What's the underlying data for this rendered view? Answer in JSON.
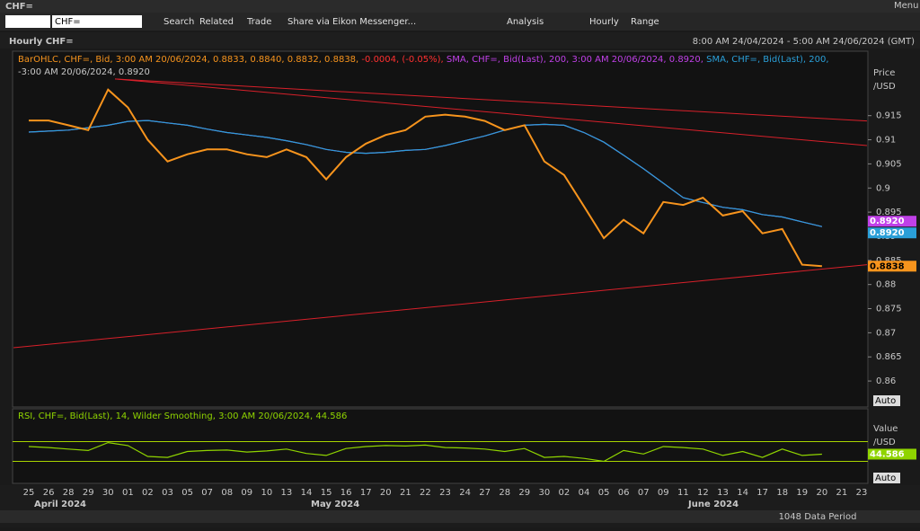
{
  "window": {
    "title": "CHF=",
    "search_box": "CHF=",
    "toolbar": [
      "Search",
      "Related",
      "Trade",
      "Share via Eikon Messenger...",
      "Analysis",
      "Hourly",
      "Range"
    ],
    "menu": "Menu",
    "chart_title": "Hourly CHF=",
    "period": "8:00 AM 24/04/2024 - 5:00 AM 24/06/2024 (GMT)",
    "price_axis_label": [
      "Price",
      "/USD"
    ],
    "value_axis_label": [
      "Value",
      "/USD"
    ],
    "auto": "Auto",
    "months": [
      "April 2024",
      "May 2024",
      "June 2024"
    ],
    "data_period": "1048 Data Period"
  },
  "chart_data": [
    {
      "type": "line",
      "legend_text": [
        {
          "text": "BarOHLC, CHF=, Bid, 3:00 AM 20/06/2024, 0.8833, 0.8840, 0.8832, 0.8838,",
          "color": "#f7941d"
        },
        {
          "text": " -0.0004, (-0.05%),",
          "color": "#ff3030"
        },
        {
          "text": " SMA, CHF=, Bid(Last),  200,  3:00 AM 20/06/2024, 0.8920,",
          "color": "#c040e8"
        },
        {
          "text": " SMA, CHF=, Bid(Last),  200,",
          "color": "#2a9fd8"
        },
        {
          "text": "-3:00 AM 20/06/2024, 0.8920",
          "color": "#2a9fd8"
        }
      ],
      "categories": [
        "25",
        "26",
        "28",
        "29",
        "30",
        "01",
        "02",
        "03",
        "05",
        "07",
        "08",
        "09",
        "10",
        "13",
        "14",
        "15",
        "16",
        "17",
        "20",
        "21",
        "22",
        "23",
        "24",
        "27",
        "28",
        "29",
        "30",
        "02",
        "04",
        "05",
        "06",
        "07",
        "09",
        "11",
        "12",
        "13",
        "14",
        "17",
        "18",
        "19",
        "20",
        "21",
        "23"
      ],
      "series": [
        {
          "name": "SMA, CHF=, Bid(Last), 200",
          "color": "#c040e8",
          "last_value": 0.892,
          "last_label": "0.8920",
          "values": [
            0.9116,
            0.9118,
            0.912,
            0.9125,
            0.913,
            0.9138,
            0.914,
            0.9135,
            0.913,
            0.9122,
            0.9115,
            0.911,
            0.9105,
            0.9098,
            0.909,
            0.908,
            0.9074,
            0.9072,
            0.9074,
            0.9078,
            0.908,
            0.9088,
            0.9098,
            0.9108,
            0.912,
            0.913,
            0.9132,
            0.913,
            0.9115,
            0.9095,
            0.9068,
            0.904,
            0.901,
            0.898,
            0.897,
            0.896,
            0.8955,
            0.8945,
            0.894,
            0.893,
            0.892,
            null,
            null
          ]
        },
        {
          "name": "SMA, CHF=, Bid(Last), 200",
          "color": "#2a9fd8",
          "last_value": 0.892,
          "last_label": "0.8920",
          "values": [
            0.9116,
            0.9118,
            0.912,
            0.9125,
            0.913,
            0.9138,
            0.914,
            0.9135,
            0.913,
            0.9122,
            0.9115,
            0.911,
            0.9105,
            0.9098,
            0.909,
            0.908,
            0.9074,
            0.9072,
            0.9074,
            0.9078,
            0.908,
            0.9088,
            0.9098,
            0.9108,
            0.912,
            0.913,
            0.9132,
            0.913,
            0.9115,
            0.9095,
            0.9068,
            0.904,
            0.901,
            0.898,
            0.897,
            0.896,
            0.8955,
            0.8945,
            0.894,
            0.893,
            0.892,
            null,
            null
          ]
        },
        {
          "name": "BarOHLC, CHF=, Bid",
          "color": "#f7941d",
          "last_value": 0.8838,
          "last_label": "0.8838",
          "values": [
            0.914,
            0.914,
            0.913,
            0.912,
            0.9204,
            0.9167,
            0.91,
            0.9055,
            0.907,
            0.908,
            0.908,
            0.907,
            0.9064,
            0.908,
            0.9064,
            0.9018,
            0.9064,
            0.9092,
            0.911,
            0.912,
            0.9148,
            0.9152,
            0.9148,
            0.9139,
            0.912,
            0.913,
            0.9055,
            0.9027,
            0.8962,
            0.8896,
            0.8934,
            0.8906,
            0.8971,
            0.8965,
            0.898,
            0.8943,
            0.8952,
            0.8906,
            0.8915,
            0.8841,
            0.8838,
            null,
            null
          ]
        }
      ],
      "trendlines": [
        {
          "color": "#d8202a",
          "from": [
            4.35,
            0.9226
          ],
          "to": [
            42.27,
            0.9139
          ]
        },
        {
          "color": "#d8202a",
          "from": [
            4.35,
            0.9226
          ],
          "to": [
            42.27,
            0.9088
          ]
        },
        {
          "color": "#d8202a",
          "from": [
            -0.77,
            0.8669
          ],
          "to": [
            42.27,
            0.8841
          ]
        }
      ],
      "ylim": [
        0.8548,
        0.925
      ],
      "yticks": [
        0.86,
        0.865,
        0.87,
        0.875,
        0.88,
        0.885,
        0.89,
        0.895,
        0.9,
        0.905,
        0.91,
        0.915
      ]
    },
    {
      "type": "line",
      "legend_text": [
        {
          "text": "RSI, CHF=, Bid(Last),  14,  Wilder Smoothing,  3:00 AM 20/06/2024, 44.586",
          "color": "#8fd400"
        }
      ],
      "series": [
        {
          "name": "RSI",
          "color": "#8fd400",
          "last_value": 44.586,
          "last_label": "44.586",
          "values": [
            60,
            58,
            55,
            52,
            68,
            62,
            40,
            38,
            50,
            52,
            53,
            49,
            51,
            55,
            46,
            42,
            56,
            60,
            62,
            61,
            63,
            58,
            57,
            55,
            50,
            56,
            38,
            40,
            36,
            30,
            52,
            45,
            60,
            58,
            55,
            42,
            50,
            38,
            55,
            42,
            44.586,
            null,
            null
          ]
        }
      ],
      "levels": [
        70,
        30
      ],
      "ylim": [
        0,
        100
      ]
    }
  ]
}
